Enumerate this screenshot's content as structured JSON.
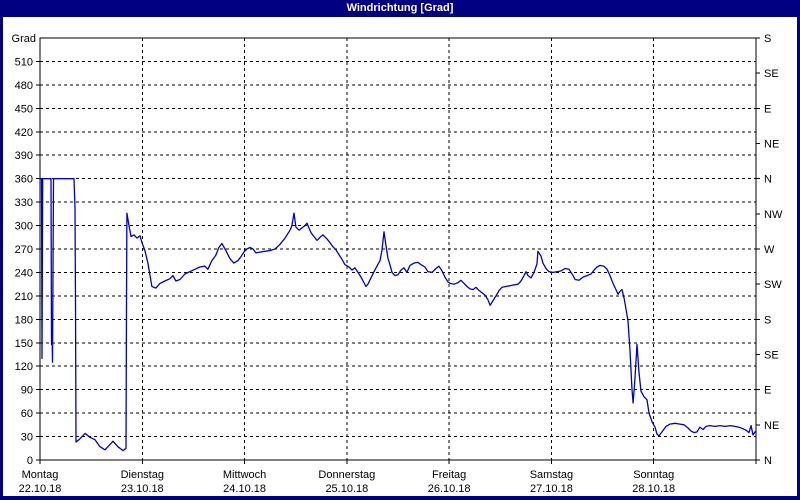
{
  "window": {
    "title": "Windrichtung [Grad]",
    "titlebar_bg": "#000080",
    "titlebar_color": "#ffffff"
  },
  "chart_data": {
    "type": "line",
    "title": "Windrichtung [Grad]",
    "ylabel_left": "Grad",
    "ylim": [
      0,
      540
    ],
    "xlim_days": [
      0,
      7
    ],
    "grid": "dashed",
    "legend_position": "none",
    "line_color": "#0000cc",
    "grid_color": "#000000",
    "y_left_ticks": [
      0,
      30,
      60,
      90,
      120,
      150,
      180,
      210,
      240,
      270,
      300,
      330,
      360,
      390,
      420,
      450,
      480,
      510
    ],
    "y_right_ticks": [
      {
        "deg": 0,
        "label": "N"
      },
      {
        "deg": 45,
        "label": "NE"
      },
      {
        "deg": 90,
        "label": "E"
      },
      {
        "deg": 135,
        "label": "SE"
      },
      {
        "deg": 180,
        "label": "S"
      },
      {
        "deg": 225,
        "label": "SW"
      },
      {
        "deg": 270,
        "label": "W"
      },
      {
        "deg": 315,
        "label": "NW"
      },
      {
        "deg": 360,
        "label": "N"
      },
      {
        "deg": 405,
        "label": "NE"
      },
      {
        "deg": 450,
        "label": "E"
      },
      {
        "deg": 495,
        "label": "SE"
      },
      {
        "deg": 540,
        "label": "S"
      }
    ],
    "days": [
      {
        "label": "Montag",
        "date": "22.10.18"
      },
      {
        "label": "Dienstag",
        "date": "23.10.18"
      },
      {
        "label": "Mittwoch",
        "date": "24.10.18"
      },
      {
        "label": "Donnerstag",
        "date": "25.10.18"
      },
      {
        "label": "Freitag",
        "date": "26.10.18"
      },
      {
        "label": "Samstag",
        "date": "27.10.18"
      },
      {
        "label": "Sonntag",
        "date": "28.10.18"
      }
    ],
    "series": [
      {
        "name": "Windrichtung",
        "points": [
          [
            0,
            360
          ],
          [
            0.015,
            360
          ],
          [
            0.02,
            130
          ],
          [
            0.026,
            360
          ],
          [
            0.108,
            360
          ],
          [
            0.112,
            148
          ],
          [
            0.117,
            168
          ],
          [
            0.122,
            125
          ],
          [
            0.132,
            360
          ],
          [
            0.332,
            360
          ],
          [
            0.342,
            322
          ],
          [
            0.347,
            200
          ],
          [
            0.352,
            23
          ],
          [
            0.381,
            26
          ],
          [
            0.44,
            34
          ],
          [
            0.489,
            29
          ],
          [
            0.538,
            26
          ],
          [
            0.587,
            17
          ],
          [
            0.635,
            13
          ],
          [
            0.684,
            20
          ],
          [
            0.714,
            24
          ],
          [
            0.762,
            17
          ],
          [
            0.811,
            12
          ],
          [
            0.841,
            15
          ],
          [
            0.846,
            200
          ],
          [
            0.85,
            316
          ],
          [
            0.87,
            300
          ],
          [
            0.89,
            286
          ],
          [
            0.919,
            288
          ],
          [
            0.948,
            284
          ],
          [
            0.978,
            287
          ],
          [
            0.997,
            278
          ],
          [
            1.026,
            268
          ],
          [
            1.055,
            252
          ],
          [
            1.094,
            222
          ],
          [
            1.133,
            220
          ],
          [
            1.172,
            226
          ],
          [
            1.221,
            229
          ],
          [
            1.27,
            232
          ],
          [
            1.299,
            236
          ],
          [
            1.329,
            229
          ],
          [
            1.368,
            231
          ],
          [
            1.417,
            238
          ],
          [
            1.465,
            241
          ],
          [
            1.514,
            244
          ],
          [
            1.563,
            247
          ],
          [
            1.612,
            248
          ],
          [
            1.641,
            244
          ],
          [
            1.68,
            255
          ],
          [
            1.719,
            262
          ],
          [
            1.749,
            272
          ],
          [
            1.778,
            277
          ],
          [
            1.817,
            268
          ],
          [
            1.856,
            258
          ],
          [
            1.895,
            252
          ],
          [
            1.934,
            255
          ],
          [
            1.964,
            260
          ],
          [
            1.993,
            266
          ],
          [
            2.023,
            270
          ],
          [
            2.053,
            272
          ],
          [
            2.082,
            270
          ],
          [
            2.111,
            265
          ],
          [
            2.15,
            266
          ],
          [
            2.199,
            267
          ],
          [
            2.248,
            268
          ],
          [
            2.297,
            270
          ],
          [
            2.346,
            276
          ],
          [
            2.395,
            284
          ],
          [
            2.444,
            294
          ],
          [
            2.463,
            300
          ],
          [
            2.483,
            316
          ],
          [
            2.502,
            298
          ],
          [
            2.532,
            294
          ],
          [
            2.561,
            297
          ],
          [
            2.59,
            300
          ],
          [
            2.61,
            303
          ],
          [
            2.629,
            297
          ],
          [
            2.649,
            291
          ],
          [
            2.678,
            286
          ],
          [
            2.708,
            281
          ],
          [
            2.737,
            285
          ],
          [
            2.766,
            288
          ],
          [
            2.805,
            283
          ],
          [
            2.835,
            278
          ],
          [
            2.864,
            273
          ],
          [
            2.893,
            269
          ],
          [
            2.922,
            263
          ],
          [
            2.952,
            257
          ],
          [
            2.981,
            250
          ],
          [
            3.021,
            247
          ],
          [
            3.05,
            243
          ],
          [
            3.079,
            246
          ],
          [
            3.109,
            240
          ],
          [
            3.138,
            234
          ],
          [
            3.167,
            227
          ],
          [
            3.187,
            222
          ],
          [
            3.206,
            225
          ],
          [
            3.236,
            233
          ],
          [
            3.265,
            241
          ],
          [
            3.294,
            248
          ],
          [
            3.324,
            255
          ],
          [
            3.343,
            268
          ],
          [
            3.363,
            292
          ],
          [
            3.382,
            275
          ],
          [
            3.402,
            258
          ],
          [
            3.421,
            250
          ],
          [
            3.441,
            240
          ],
          [
            3.47,
            236
          ],
          [
            3.499,
            237
          ],
          [
            3.529,
            243
          ],
          [
            3.558,
            246
          ],
          [
            3.587,
            240
          ],
          [
            3.617,
            249
          ],
          [
            3.656,
            252
          ],
          [
            3.695,
            253
          ],
          [
            3.724,
            250
          ],
          [
            3.763,
            247
          ],
          [
            3.793,
            241
          ],
          [
            3.832,
            240
          ],
          [
            3.871,
            245
          ],
          [
            3.9,
            248
          ],
          [
            3.93,
            242
          ],
          [
            3.959,
            234
          ],
          [
            3.988,
            228
          ],
          [
            4.009,
            226
          ],
          [
            4.048,
            225
          ],
          [
            4.087,
            227
          ],
          [
            4.116,
            230
          ],
          [
            4.146,
            226
          ],
          [
            4.175,
            222
          ],
          [
            4.204,
            219
          ],
          [
            4.234,
            218
          ],
          [
            4.263,
            221
          ],
          [
            4.292,
            217
          ],
          [
            4.321,
            214
          ],
          [
            4.351,
            211
          ],
          [
            4.38,
            205
          ],
          [
            4.4,
            198
          ],
          [
            4.429,
            204
          ],
          [
            4.458,
            210
          ],
          [
            4.488,
            217
          ],
          [
            4.517,
            221
          ],
          [
            4.556,
            222
          ],
          [
            4.595,
            223
          ],
          [
            4.634,
            224
          ],
          [
            4.673,
            225
          ],
          [
            4.703,
            229
          ],
          [
            4.732,
            236
          ],
          [
            4.751,
            241
          ],
          [
            4.771,
            236
          ],
          [
            4.8,
            233
          ],
          [
            4.83,
            240
          ],
          [
            4.859,
            251
          ],
          [
            4.868,
            267
          ],
          [
            4.898,
            261
          ],
          [
            4.917,
            252
          ],
          [
            4.947,
            245
          ],
          [
            4.976,
            241
          ],
          [
            5.016,
            240
          ],
          [
            5.055,
            241
          ],
          [
            5.094,
            242
          ],
          [
            5.133,
            245
          ],
          [
            5.172,
            244
          ],
          [
            5.202,
            238
          ],
          [
            5.231,
            231
          ],
          [
            5.27,
            230
          ],
          [
            5.309,
            234
          ],
          [
            5.348,
            236
          ],
          [
            5.387,
            238
          ],
          [
            5.417,
            243
          ],
          [
            5.446,
            247
          ],
          [
            5.475,
            249
          ],
          [
            5.514,
            248
          ],
          [
            5.544,
            244
          ],
          [
            5.573,
            236
          ],
          [
            5.602,
            226
          ],
          [
            5.631,
            218
          ],
          [
            5.651,
            212
          ],
          [
            5.671,
            216
          ],
          [
            5.69,
            218
          ],
          [
            5.71,
            207
          ],
          [
            5.729,
            193
          ],
          [
            5.749,
            178
          ],
          [
            5.768,
            140
          ],
          [
            5.788,
            90
          ],
          [
            5.798,
            73
          ],
          [
            5.817,
            105
          ],
          [
            5.837,
            148
          ],
          [
            5.856,
            112
          ],
          [
            5.876,
            88
          ],
          [
            5.905,
            81
          ],
          [
            5.934,
            77
          ],
          [
            5.954,
            60
          ],
          [
            5.983,
            49
          ],
          [
            6.013,
            42
          ],
          [
            6.032,
            33
          ],
          [
            6.052,
            31
          ],
          [
            6.081,
            36
          ],
          [
            6.12,
            43
          ],
          [
            6.159,
            46
          ],
          [
            6.208,
            47
          ],
          [
            6.257,
            46
          ],
          [
            6.296,
            45
          ],
          [
            6.335,
            41
          ],
          [
            6.365,
            37
          ],
          [
            6.394,
            35
          ],
          [
            6.423,
            36
          ],
          [
            6.452,
            42
          ],
          [
            6.482,
            39
          ],
          [
            6.511,
            43
          ],
          [
            6.55,
            44
          ],
          [
            6.599,
            43
          ],
          [
            6.648,
            44
          ],
          [
            6.697,
            43
          ],
          [
            6.746,
            44
          ],
          [
            6.795,
            43
          ],
          [
            6.834,
            42
          ],
          [
            6.873,
            40
          ],
          [
            6.903,
            38
          ],
          [
            6.932,
            35
          ],
          [
            6.952,
            44
          ],
          [
            6.971,
            32
          ],
          [
            6.991,
            36
          ],
          [
            7,
            37
          ]
        ]
      }
    ]
  }
}
